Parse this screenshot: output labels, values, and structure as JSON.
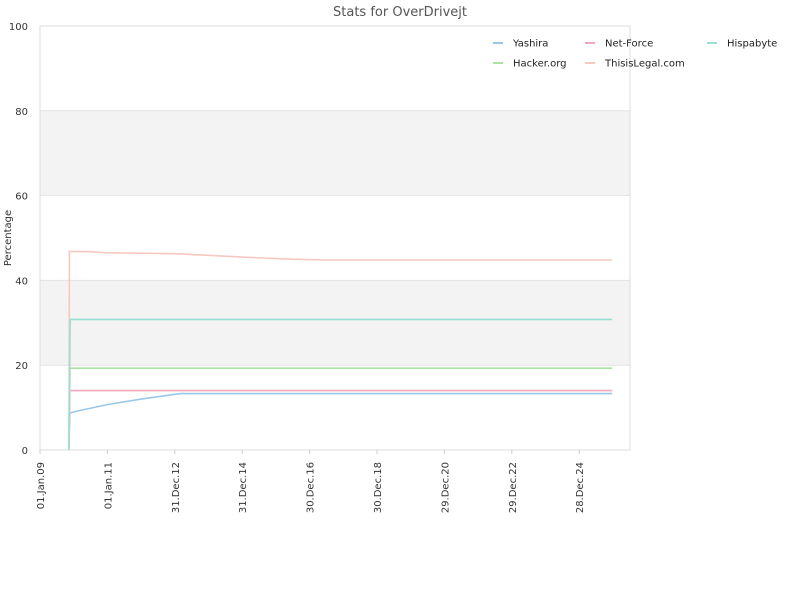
{
  "chart_data": {
    "type": "line",
    "title": "Stats for OverDrivejt",
    "xlabel": "",
    "ylabel": "Percentage",
    "ylim": [
      0,
      100
    ],
    "yticks": [
      0,
      20,
      40,
      60,
      80,
      100
    ],
    "xlim": [
      "2009-01-01",
      "2026-07-01"
    ],
    "xticks": [
      {
        "date": "2009-01-01",
        "label": "01.Jan.09"
      },
      {
        "date": "2011-01-01",
        "label": "01.Jan.11"
      },
      {
        "date": "2012-12-31",
        "label": "31.Dec.12"
      },
      {
        "date": "2014-12-31",
        "label": "31.Dec.14"
      },
      {
        "date": "2016-12-30",
        "label": "30.Dec.16"
      },
      {
        "date": "2018-12-30",
        "label": "30.Dec.18"
      },
      {
        "date": "2020-12-29",
        "label": "29.Dec.20"
      },
      {
        "date": "2022-12-29",
        "label": "29.Dec.22"
      },
      {
        "date": "2024-12-28",
        "label": "28.Dec.24"
      }
    ],
    "grid": "alternating horizontal bands",
    "legend_position": "top-right",
    "series": [
      {
        "name": "Yashira",
        "color": "#9ac8e8",
        "points": [
          [
            "2009-11-10",
            0
          ],
          [
            "2009-11-20",
            8.7
          ],
          [
            "2010-03-01",
            9.3
          ],
          [
            "2011-01-01",
            10.7
          ],
          [
            "2012-01-01",
            12.0
          ],
          [
            "2013-03-01",
            13.3
          ],
          [
            "2025-12-20",
            13.3
          ]
        ]
      },
      {
        "name": "Hacker.org",
        "color": "#a8e4a0",
        "points": [
          [
            "2009-11-10",
            0
          ],
          [
            "2009-11-22",
            19.3
          ],
          [
            "2025-12-20",
            19.3
          ]
        ]
      },
      {
        "name": "Net-Force",
        "color": "#f4a8bc",
        "points": [
          [
            "2009-11-10",
            0
          ],
          [
            "2009-11-20",
            14.0
          ],
          [
            "2025-12-20",
            14.0
          ]
        ]
      },
      {
        "name": "ThisisLegal.com",
        "color": "#f8c8c0",
        "points": [
          [
            "2009-11-10",
            0
          ],
          [
            "2009-11-15",
            46.8
          ],
          [
            "2010-06-01",
            46.8
          ],
          [
            "2011-01-01",
            46.5
          ],
          [
            "2013-01-01",
            46.3
          ],
          [
            "2015-01-01",
            45.5
          ],
          [
            "2016-06-01",
            45.0
          ],
          [
            "2017-06-01",
            44.8
          ],
          [
            "2025-12-20",
            44.8
          ]
        ]
      },
      {
        "name": "Hispabyte",
        "color": "#98e0d4",
        "points": [
          [
            "2009-11-10",
            0
          ],
          [
            "2009-11-24",
            30.8
          ],
          [
            "2025-12-20",
            30.8
          ]
        ]
      }
    ],
    "legend_order": [
      "Yashira",
      "Net-Force",
      "Hispabyte",
      "Hacker.org",
      "ThisisLegal.com"
    ]
  }
}
